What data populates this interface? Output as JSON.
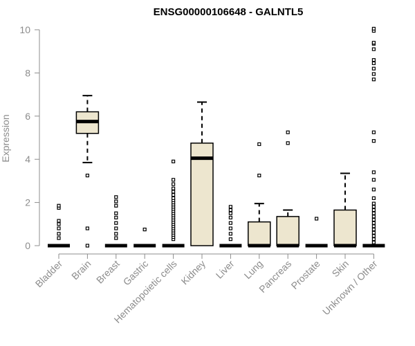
{
  "chart_data": {
    "type": "box",
    "title": "ENSG00000106648 - GALNTL5",
    "xlabel": "",
    "ylabel": "Expression",
    "ylim": [
      0,
      10
    ],
    "yticks": [
      0,
      2,
      4,
      6,
      8,
      10
    ],
    "categories": [
      "Bladder",
      "Brain",
      "Breast",
      "Gastric",
      "Hematopoietic cells",
      "Kidney",
      "Liver",
      "Lung",
      "Pancreas",
      "Prostate",
      "Skin",
      "Unknown / Other"
    ],
    "boxes": [
      {
        "category": "Bladder",
        "q1": 0,
        "median": 0,
        "q3": 0,
        "whisker_low": 0,
        "whisker_high": 0,
        "outliers": [
          0.35,
          0.55,
          0.8,
          1.0,
          1.15,
          1.75,
          1.85
        ]
      },
      {
        "category": "Brain",
        "q1": 5.2,
        "median": 5.75,
        "q3": 6.2,
        "whisker_low": 3.85,
        "whisker_high": 6.95,
        "outliers": [
          3.25,
          0.8,
          0.0
        ]
      },
      {
        "category": "Breast",
        "q1": 0,
        "median": 0,
        "q3": 0,
        "whisker_low": 0,
        "whisker_high": 0,
        "outliers": [
          0.35,
          0.55,
          0.8,
          1.05,
          1.3,
          1.5,
          1.85,
          2.05,
          2.25
        ]
      },
      {
        "category": "Gastric",
        "q1": 0,
        "median": 0,
        "q3": 0,
        "whisker_low": 0,
        "whisker_high": 0,
        "outliers": [
          0.75
        ]
      },
      {
        "category": "Hematopoietic cells",
        "q1": 0,
        "median": 0,
        "q3": 0,
        "whisker_low": 0,
        "whisker_high": 0,
        "outliers": [
          0.3,
          0.4,
          0.5,
          0.6,
          0.7,
          0.8,
          0.9,
          1.0,
          1.1,
          1.2,
          1.3,
          1.4,
          1.5,
          1.6,
          1.7,
          1.8,
          1.9,
          2.0,
          2.1,
          2.2,
          2.35,
          2.5,
          2.65,
          2.85,
          3.05,
          3.9
        ]
      },
      {
        "category": "Kidney",
        "q1": 0,
        "median": 4.05,
        "q3": 4.75,
        "whisker_low": 0,
        "whisker_high": 6.65,
        "outliers": []
      },
      {
        "category": "Liver",
        "q1": 0,
        "median": 0,
        "q3": 0,
        "whisker_low": 0,
        "whisker_high": 0,
        "outliers": [
          0.3,
          0.55,
          0.8,
          1.05,
          1.3,
          1.5,
          1.65,
          1.8
        ]
      },
      {
        "category": "Lung",
        "q1": 0,
        "median": 0,
        "q3": 1.1,
        "whisker_low": 0,
        "whisker_high": 1.95,
        "outliers": [
          3.25,
          4.7
        ]
      },
      {
        "category": "Pancreas",
        "q1": 0,
        "median": 0,
        "q3": 1.35,
        "whisker_low": 0,
        "whisker_high": 1.65,
        "outliers": [
          4.75,
          5.25
        ]
      },
      {
        "category": "Prostate",
        "q1": 0,
        "median": 0,
        "q3": 0,
        "whisker_low": 0,
        "whisker_high": 0,
        "outliers": [
          1.25
        ]
      },
      {
        "category": "Skin",
        "q1": 0,
        "median": 0,
        "q3": 1.65,
        "whisker_low": 0,
        "whisker_high": 3.35,
        "outliers": []
      },
      {
        "category": "Unknown / Other",
        "q1": 0,
        "median": 0,
        "q3": 0,
        "whisker_low": 0,
        "whisker_high": 0,
        "outliers": [
          0.15,
          0.3,
          0.45,
          0.6,
          0.75,
          0.9,
          1.05,
          1.2,
          1.35,
          1.5,
          1.65,
          1.8,
          1.95,
          2.2,
          2.6,
          3.05,
          3.4,
          4.85,
          5.25,
          7.7,
          7.95,
          8.2,
          8.45,
          8.6,
          9.1,
          9.35,
          9.4,
          9.95,
          10.05
        ]
      }
    ],
    "grid": false,
    "legend": "none"
  },
  "colors": {
    "box_fill": "#ede6cf",
    "box_stroke": "#000000",
    "axis": "#8c8c8c",
    "text_muted": "#8c8c8c"
  }
}
